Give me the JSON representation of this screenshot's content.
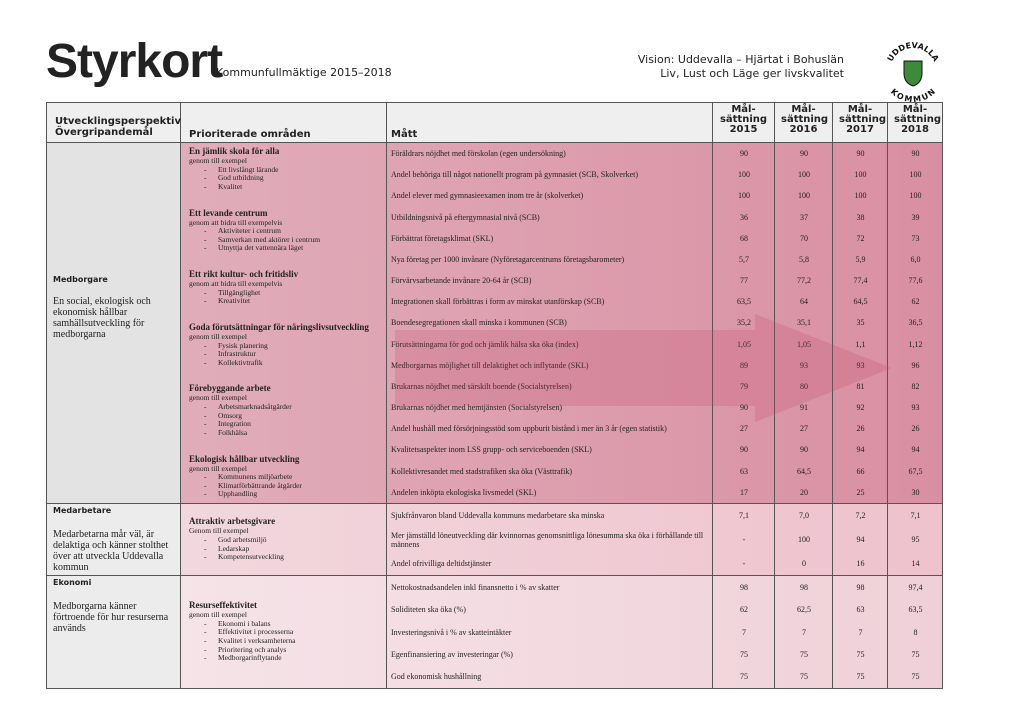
{
  "header": {
    "title": "Styrkort",
    "subtitle": "Kommunfullmäktige 2015–2018",
    "vision": [
      "Vision: Uddevalla – Hjärtat i Bohuslän",
      "Liv, Lust och Läge ger livskvalitet"
    ],
    "logo": [
      "UDDEVALLA",
      "KOMMUN"
    ]
  },
  "table": {
    "columns": {
      "perspective": [
        "Utvecklingsperspektiv",
        "Övergripandemål"
      ],
      "areas": "Prioriterade områden",
      "measure": "Mått",
      "targets": [
        {
          "label": "Mål-sättning",
          "year": "2015"
        },
        {
          "label": "Mål-sättning",
          "year": "2016"
        },
        {
          "label": "Mål-sättning",
          "year": "2017"
        },
        {
          "label": "Mål-sättning",
          "year": "2018"
        }
      ]
    },
    "sections": [
      {
        "perspective": "Medborgare",
        "goal": "En social, ekologisk och ekonomisk hållbar samhällsutveckling för medborgarna",
        "areas": [
          {
            "title": "En jämlik skola för alla",
            "intro": "genom till exempel",
            "items": [
              "Ett livslångt lärande",
              "God utbildning",
              "Kvalitet"
            ]
          },
          {
            "title": "Ett levande centrum",
            "intro": "genom att bidra till exempelvis",
            "items": [
              "Aktiviteter i centrum",
              "Samverkan med aktörer i centrum",
              "Utnyttja det vattennära läget"
            ]
          },
          {
            "title": "Ett rikt kultur- och fritidsliv",
            "intro": "genom att bidra till exempelvis",
            "items": [
              "Tillgänglighet",
              "Kreativitet"
            ]
          },
          {
            "title": "Goda förutsättningar för näringslivsutveckling",
            "intro": "genom till exempel",
            "items": [
              "Fysisk planering",
              "Infrastruktur",
              "Kollektivtrafik"
            ]
          },
          {
            "title": "Förebyggande arbete",
            "intro": "genom till exempel",
            "items": [
              "Arbetsmarknadsåtgärder",
              "Omsorg",
              "Integration",
              "Folkhälsa"
            ]
          },
          {
            "title": "Ekologisk hållbar utveckling",
            "intro": "genom till exempel",
            "items": [
              "Kommunens miljöarbete",
              "Klimatförbättrande åtgärder",
              "Upphandling"
            ]
          }
        ],
        "measures": [
          {
            "text": "Föräldrars nöjdhet med förskolan (egen undersökning)",
            "values": [
              "90",
              "90",
              "90",
              "90"
            ]
          },
          {
            "text": "Andel behöriga till något nationellt program på gymnasiet  (SCB, Skolverket)",
            "values": [
              "100",
              "100",
              "100",
              "100"
            ]
          },
          {
            "text": "Andel elever med gymnasieexamen inom tre år (skolverket)",
            "values": [
              "100",
              "100",
              "100",
              "100"
            ]
          },
          {
            "text": "Utbildningsnivå på eftergymnasial nivå (SCB)",
            "values": [
              "36",
              "37",
              "38",
              "39"
            ]
          },
          {
            "text": "Förbättrat företagsklimat (SKL)",
            "values": [
              "68",
              "70",
              "72",
              "73"
            ]
          },
          {
            "text": "Nya företag per 1000 invånare (Nyföretagarcentrums företagsbarometer)",
            "values": [
              "5,7",
              "5,8",
              "5,9",
              "6,0"
            ]
          },
          {
            "text": "Förvärvsarbetande invånare 20-64 år (SCB)",
            "values": [
              "77",
              "77,2",
              "77,4",
              "77,6"
            ]
          },
          {
            "text": "Integrationen skall förbättras i form av minskat utanförskap (SCB)",
            "values": [
              "63,5",
              "64",
              "64,5",
              "62"
            ]
          },
          {
            "text": "Boendesegregationen skall minska i kommunen     (SCB)",
            "values": [
              "35,2",
              "35,1",
              "35",
              "36,5"
            ]
          },
          {
            "text": "Förutsättningarna för god och jämlik hälsa ska öka (index)",
            "values": [
              "1,05",
              "1,05",
              "1,1",
              "1,12"
            ]
          },
          {
            "text": "Medborgarnas möjlighet till delaktighet och inflytande (SKL)",
            "values": [
              "89",
              "93",
              "93",
              "96"
            ]
          },
          {
            "text": "Brukarnas nöjdhet med särskilt boende  (Socialstyrelsen)",
            "values": [
              "79",
              "80",
              "81",
              "82"
            ]
          },
          {
            "text": "Brukarnas nöjdhet med hemtjänsten (Socialstyrelsen)",
            "values": [
              "90",
              "91",
              "92",
              "93"
            ]
          },
          {
            "text": "Andel hushåll med försörjningsstöd som uppburit bistånd i mer än 3 år (egen statistik)",
            "values": [
              "27",
              "27",
              "26",
              "26"
            ]
          },
          {
            "text": "Kvalitetsaspekter inom LSS grupp- och serviceboenden (SKL)",
            "values": [
              "90",
              "90",
              "94",
              "94"
            ]
          },
          {
            "text": "Kollektivresandet med stadstrafiken ska öka (Västtrafik)",
            "values": [
              "63",
              "64,5",
              "66",
              "67,5"
            ]
          },
          {
            "text": "Andelen inköpta ekologiska livsmedel (SKL)",
            "values": [
              "17",
              "20",
              "25",
              "30"
            ]
          }
        ]
      },
      {
        "perspective": "Medarbetare",
        "goal": "Medarbetarna mår väl, är delaktiga och känner stolthet över att utveckla Uddevalla kommun",
        "areas": [
          {
            "title": "Attraktiv arbetsgivare",
            "intro": "Genom till exempel",
            "items": [
              "God arbetsmiljö",
              "Ledarskap",
              "Kompetensutveckling"
            ]
          }
        ],
        "measures": [
          {
            "text": "Sjukfrånvaron bland Uddevalla kommuns medarbetare ska minska",
            "values": [
              "7,1",
              "7,0",
              "7,2",
              "7,1"
            ]
          },
          {
            "text": "Mer jämställd löneutveckling där kvinnornas genomsnittliga lönesumma ska öka i förhållande till männens",
            "values": [
              "-",
              "100",
              "94",
              "95"
            ]
          },
          {
            "text": "Andel ofrivilliga deltidstjänster",
            "values": [
              "-",
              "0",
              "16",
              "14"
            ]
          }
        ]
      },
      {
        "perspective": "Ekonomi",
        "goal": "Medborgarna känner förtroende för hur resurserna används",
        "areas": [
          {
            "title": "Resurseffektivitet",
            "intro": "genom till exempel",
            "items": [
              "Ekonomi i balans",
              "Effektivitet i processerna",
              "Kvalitet i verksamheterna",
              "Prioritering och analys",
              "Medborgarinflytande"
            ]
          }
        ],
        "measures": [
          {
            "text": "Nettokostnadsandelen inkl finansnetto i % av skatter",
            "values": [
              "98",
              "98",
              "98",
              "97,4"
            ]
          },
          {
            "text": "Soliditeten ska öka (%)",
            "values": [
              "62",
              "62,5",
              "63",
              "63,5"
            ]
          },
          {
            "text": "Investeringsnivå i % av skatteintäkter",
            "values": [
              "7",
              "7",
              "7",
              "8"
            ]
          },
          {
            "text": "Egenfinansiering av investeringar (%)",
            "values": [
              "75",
              "75",
              "75",
              "75"
            ]
          },
          {
            "text": "God ekonomisk hushållning",
            "values": [
              "75",
              "75",
              "75",
              "75"
            ]
          }
        ]
      }
    ]
  }
}
